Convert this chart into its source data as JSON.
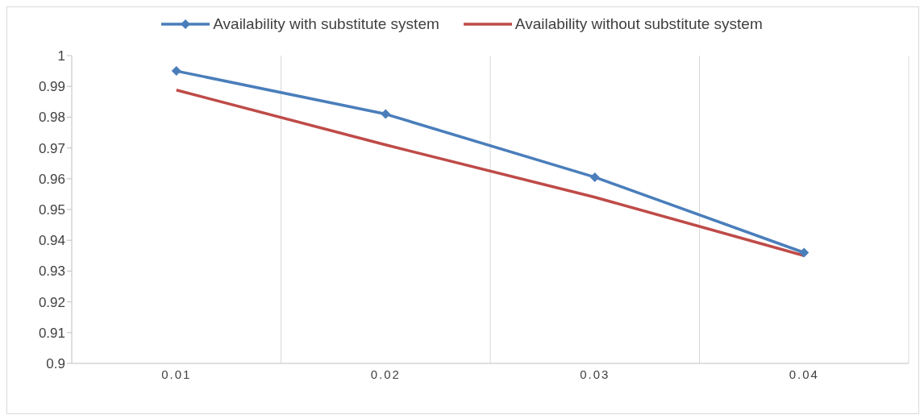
{
  "chart_data": {
    "type": "line",
    "categories": [
      "0.01",
      "0.02",
      "0.03",
      "0.04"
    ],
    "series": [
      {
        "name": "Availability with substitute system",
        "color": "#4a7ebb",
        "values": [
          0.995,
          0.981,
          0.9605,
          0.936
        ],
        "marker": "diamond"
      },
      {
        "name": "Availability without substitute system",
        "color": "#be4b48",
        "values": [
          0.9888,
          0.971,
          0.954,
          0.935
        ],
        "marker": "none"
      }
    ],
    "ylim": [
      0.9,
      1
    ],
    "yticks": [
      0.9,
      0.91,
      0.92,
      0.93,
      0.94,
      0.95,
      0.96,
      0.97,
      0.98,
      0.99,
      1
    ],
    "grid": "x",
    "legend": "top",
    "line_style": "solid"
  }
}
